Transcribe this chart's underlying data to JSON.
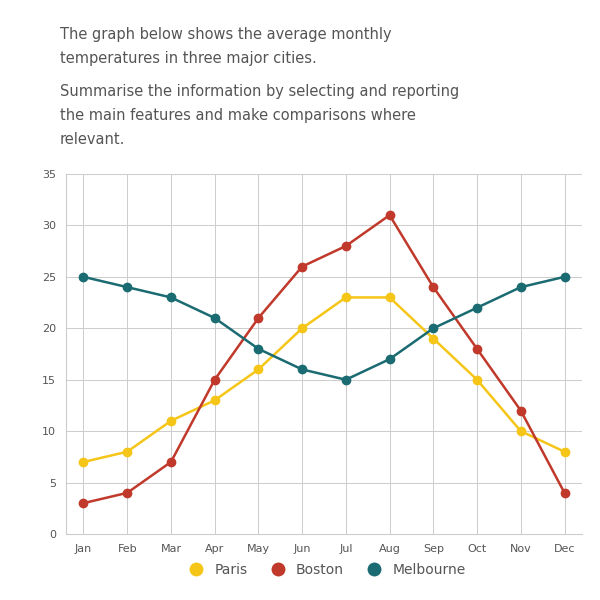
{
  "months": [
    "Jan",
    "Feb",
    "Mar",
    "Apr",
    "May",
    "Jun",
    "Jul",
    "Aug",
    "Sep",
    "Oct",
    "Nov",
    "Dec"
  ],
  "paris": [
    7,
    8,
    11,
    13,
    16,
    20,
    23,
    23,
    19,
    15,
    10,
    8
  ],
  "boston": [
    3,
    4,
    7,
    15,
    21,
    26,
    28,
    31,
    24,
    18,
    12,
    4
  ],
  "melbourne": [
    25,
    24,
    23,
    21,
    18,
    16,
    15,
    17,
    20,
    22,
    24,
    25
  ],
  "paris_color": "#f5c518",
  "boston_color": "#c0392b",
  "melbourne_color": "#1a6b72",
  "ylim": [
    0,
    35
  ],
  "yticks": [
    0,
    5,
    10,
    15,
    20,
    25,
    30,
    35
  ],
  "text_line1": "The graph below shows the average monthly",
  "text_line2": "temperatures in three major cities.",
  "text_line3": "Summarise the information by selecting and reporting",
  "text_line4": "the main features and make comparisons where",
  "text_line5": "relevant.",
  "bg_color": "#ffffff",
  "grid_color": "#cccccc",
  "marker_size": 6,
  "line_width": 1.8,
  "legend_labels": [
    "Paris",
    "Boston",
    "Melbourne"
  ],
  "text_color": "#555555",
  "tick_fontsize": 8,
  "text_fontsize": 10.5
}
